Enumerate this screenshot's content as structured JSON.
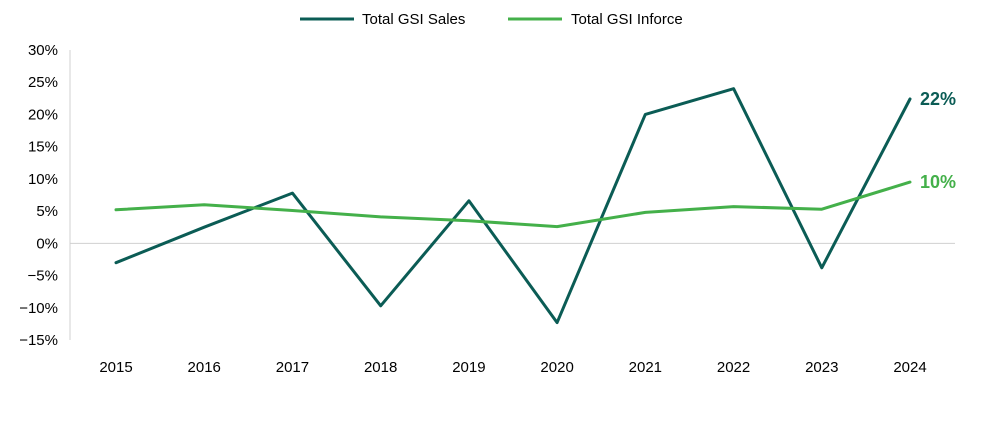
{
  "chart_data": {
    "type": "line",
    "title": "",
    "xlabel": "",
    "ylabel": "",
    "x": [
      "2015",
      "2016",
      "2017",
      "2018",
      "2019",
      "2020",
      "2021",
      "2022",
      "2023",
      "2024"
    ],
    "ylim": [
      -15,
      30
    ],
    "yticks": [
      30,
      25,
      20,
      15,
      10,
      5,
      0,
      -5,
      -10,
      -15
    ],
    "ytick_labels": [
      "30%",
      "25%",
      "20%",
      "15%",
      "10%",
      "5%",
      "0%",
      "−5%",
      "−10%",
      "−15%"
    ],
    "legend_position": "top-center",
    "grid": false,
    "series": [
      {
        "name": "Total GSI Sales",
        "color": "#0b5c55",
        "values": [
          -3,
          2.5,
          7.8,
          -9.7,
          6.6,
          -12.3,
          20,
          24,
          -3.8,
          22.4
        ],
        "end_label": "22%"
      },
      {
        "name": "Total GSI Inforce",
        "color": "#44b04a",
        "values": [
          5.2,
          6,
          5.1,
          4.1,
          3.5,
          2.6,
          4.8,
          5.7,
          5.3,
          9.5
        ],
        "end_label": "10%"
      }
    ]
  }
}
